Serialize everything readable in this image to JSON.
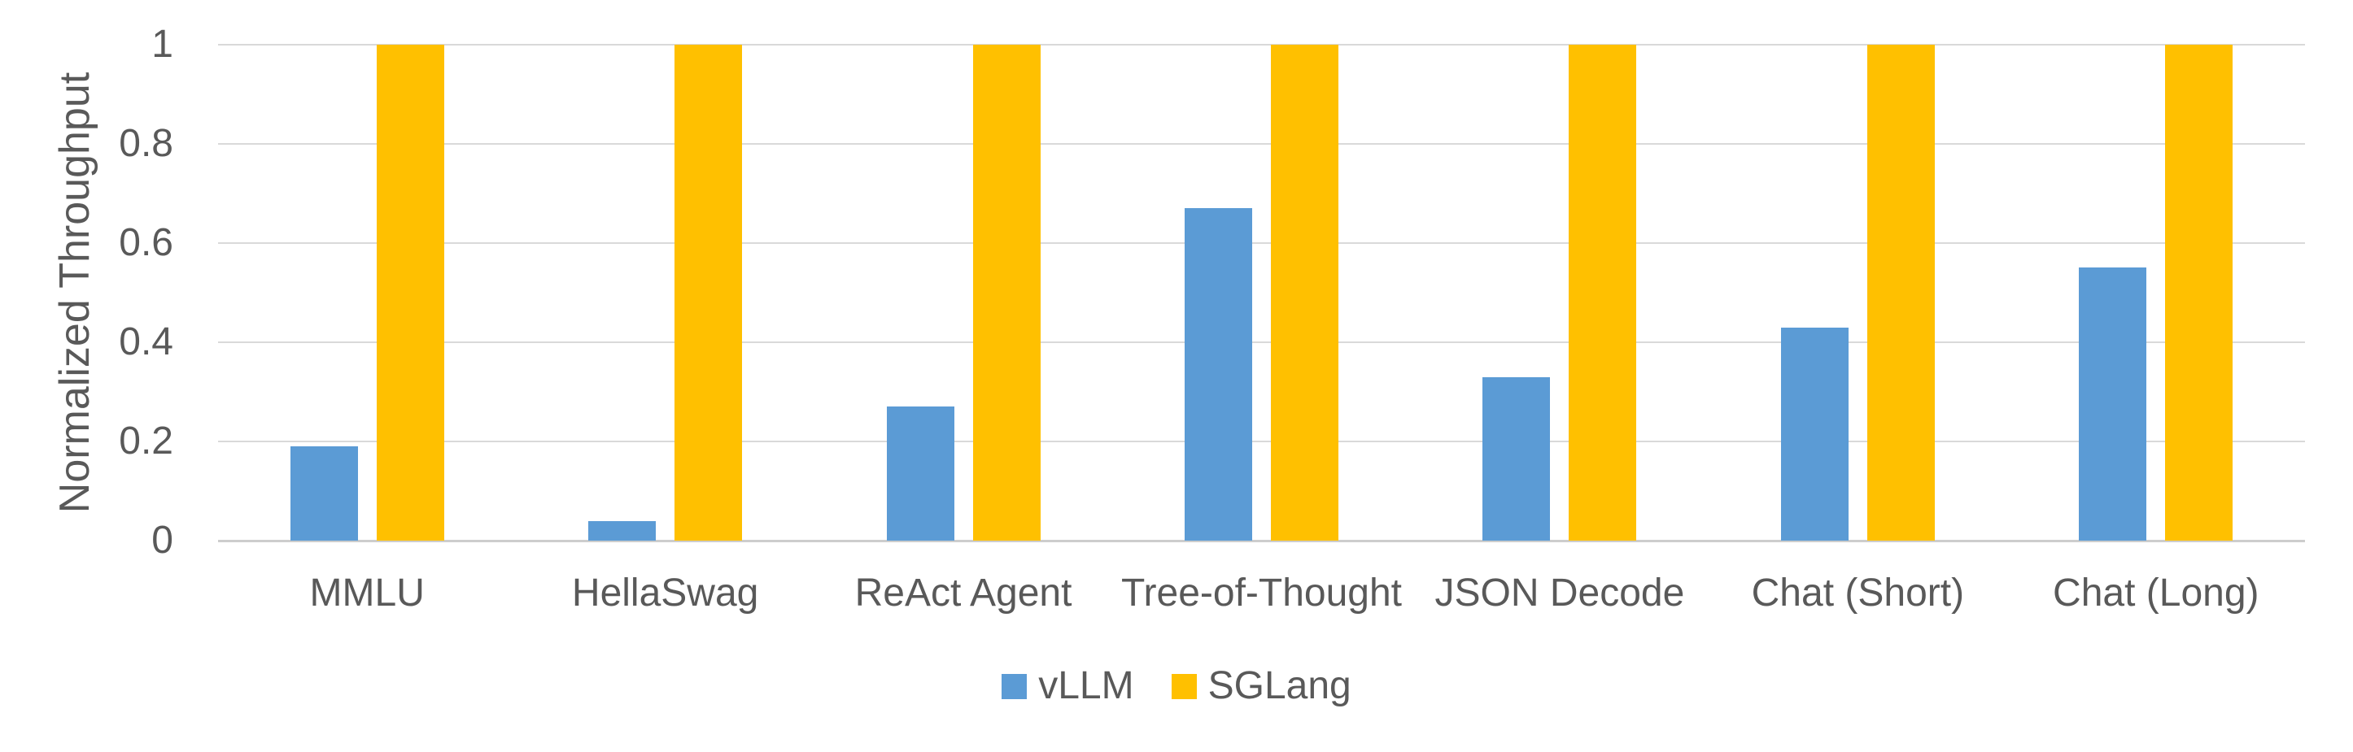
{
  "chart_data": {
    "type": "bar",
    "title": "",
    "xlabel": "",
    "ylabel": "Normalized Throughput",
    "ylim": [
      0,
      1
    ],
    "yticks": [
      0,
      0.2,
      0.4,
      0.6,
      0.8,
      1
    ],
    "grid": "horizontal",
    "grid_color": "#d9d9d9",
    "legend_position": "bottom",
    "categories": [
      "MMLU",
      "HellaSwag",
      "ReAct Agent",
      "Tree-of-Thought",
      "JSON Decode",
      "Chat (Short)",
      "Chat (Long)"
    ],
    "series": [
      {
        "name": "vLLM",
        "color": "#5b9bd5",
        "values": [
          0.19,
          0.04,
          0.27,
          0.67,
          0.33,
          0.43,
          0.55
        ]
      },
      {
        "name": "SGLang",
        "color": "#ffc000",
        "values": [
          1,
          1,
          1,
          1,
          1,
          1,
          1
        ]
      }
    ]
  },
  "colors": {
    "text": "#595959",
    "gridline": "#d9d9d9",
    "axis_line": "#cdcdcd",
    "background": "#ffffff"
  }
}
